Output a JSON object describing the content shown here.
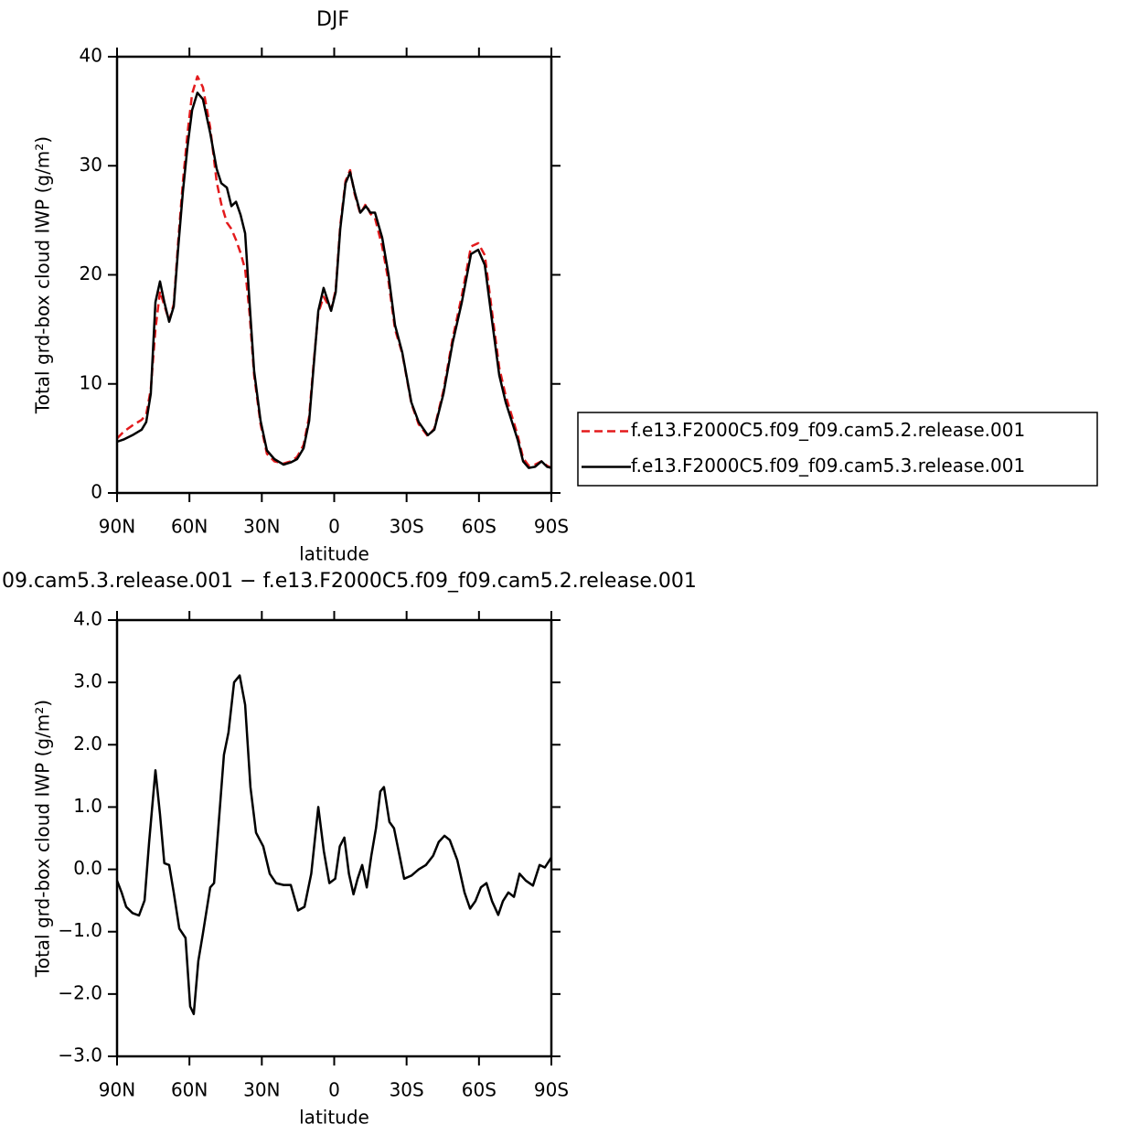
{
  "chart_data": [
    {
      "type": "line",
      "title": "DJF",
      "x_label": "latitude",
      "y_label": "Total grd-box cloud IWP (g/m²)",
      "x": [
        90,
        87.3,
        83.6,
        79.8,
        77.9,
        76,
        74.1,
        72.2,
        70.4,
        68.4,
        66.5,
        64.6,
        62.7,
        60.8,
        58.9,
        56.7,
        54.4,
        51.4,
        48.7,
        46.8,
        44.5,
        42.6,
        40.7,
        38.8,
        36.9,
        35.1,
        33.2,
        30.5,
        27.9,
        24.8,
        21,
        18,
        15.4,
        12.7,
        10.4,
        8.5,
        6.6,
        4.4,
        1.3,
        -0.6,
        -2.5,
        -4.7,
        -6.6,
        -8.5,
        -10.8,
        -13.1,
        -15,
        -16.9,
        -19.9,
        -22.5,
        -25.2,
        -28.2,
        -32,
        -35,
        -38.8,
        -41.5,
        -45.3,
        -49.1,
        -52.9,
        -56.7,
        -59.7,
        -62.4,
        -65.4,
        -68.4,
        -71.1,
        -73.7,
        -76,
        -78.3,
        -80.6,
        -83.2,
        -85.9,
        -88.2,
        -90
      ],
      "series": [
        {
          "name": "f.e13.F2000C5.f09_f09.cam5.2.release.001",
          "color": "#e31a1c",
          "dash": true,
          "values": [
            5.0,
            5.6,
            6.2,
            6.7,
            7.2,
            9.5,
            15,
            18.5,
            17.2,
            15.8,
            17.3,
            23.2,
            28.5,
            33,
            36.6,
            38.2,
            37.2,
            33.5,
            28.5,
            26.5,
            24.8,
            24.2,
            23.2,
            22,
            20.5,
            16.5,
            10.8,
            6.3,
            3.6,
            2.9,
            2.7,
            2.9,
            3.3,
            4.4,
            7,
            12,
            16.5,
            18,
            16.8,
            18.6,
            24.5,
            28.6,
            29.6,
            27.4,
            25.6,
            26.5,
            25.6,
            25.2,
            22.6,
            19.4,
            15,
            12.8,
            8.2,
            6.3,
            5.2,
            5.9,
            9.4,
            14.2,
            18.1,
            22.6,
            22.9,
            21.8,
            16.6,
            11.5,
            8.9,
            7.0,
            5.3,
            3.2,
            2.5,
            2.6,
            2.9,
            2.5,
            2.3
          ]
        },
        {
          "name": "f.e13.F2000C5.f09_f09.cam5.3.release.001",
          "color": "#000000",
          "dash": false,
          "values": [
            4.7,
            4.9,
            5.3,
            5.8,
            6.5,
            9.1,
            17.5,
            19.4,
            17.5,
            15.7,
            17.1,
            22.6,
            27.6,
            31.8,
            35.1,
            36.7,
            36.1,
            33,
            29.7,
            28.4,
            28,
            26.3,
            26.7,
            25.5,
            23.8,
            17.5,
            11.2,
            6.6,
            3.9,
            3.1,
            2.6,
            2.8,
            3.1,
            4.1,
            6.6,
            11.7,
            16.7,
            18.8,
            16.7,
            18.4,
            24.2,
            28.4,
            29.4,
            27.6,
            25.7,
            26.3,
            25.7,
            25.7,
            23.4,
            20,
            15.4,
            12.9,
            8.3,
            6.5,
            5.3,
            5.8,
            9.1,
            13.8,
            17.5,
            21.9,
            22.3,
            20.9,
            15.8,
            10.8,
            8.3,
            6.5,
            4.9,
            2.9,
            2.3,
            2.4,
            2.9,
            2.4,
            2.3
          ]
        }
      ],
      "xlim": [
        90,
        -90
      ],
      "xticks": [
        {
          "value": 90,
          "label": "90N"
        },
        {
          "value": 60,
          "label": "60N"
        },
        {
          "value": 30,
          "label": "30N"
        },
        0,
        {
          "value": -30,
          "label": "30S"
        },
        {
          "value": -60,
          "label": "60S"
        },
        {
          "value": -90,
          "label": "90S"
        }
      ],
      "ylim": [
        0,
        40
      ],
      "yticks": [
        0,
        10,
        20,
        30,
        40
      ],
      "legend": "right"
    },
    {
      "type": "line",
      "title": "09.cam5.3.release.001  −  f.e13.F2000C5.f09_f09.cam5.2.release.001",
      "x_label": "latitude",
      "y_label": "Total grd-box cloud IWP (g/m²)",
      "x": [
        90,
        88.1,
        86.2,
        83.6,
        80.9,
        78.6,
        76.7,
        74.1,
        72.2,
        70.4,
        68.4,
        66.5,
        64.2,
        61.6,
        59.7,
        58.2,
        56.3,
        54.4,
        51.4,
        49.8,
        47.6,
        45.7,
        43.8,
        41.5,
        39.2,
        36.9,
        34.7,
        32.4,
        29.4,
        26.7,
        24.1,
        21,
        18,
        15,
        12.3,
        9.5,
        6.6,
        4.3,
        2,
        -0.4,
        -2.3,
        -4.2,
        -6.1,
        -8,
        -9.7,
        -11.6,
        -13.5,
        -15.4,
        -17.3,
        -19.1,
        -20.6,
        -22.9,
        -24.8,
        -26.7,
        -29,
        -32,
        -35,
        -38,
        -41,
        -43.3,
        -45.7,
        -47.9,
        -51,
        -54,
        -56.3,
        -58.5,
        -60.8,
        -63.1,
        -65.4,
        -68,
        -69.9,
        -72.2,
        -74.5,
        -76.8,
        -79.4,
        -82.4,
        -85.1,
        -87.3,
        -90
      ],
      "series": [
        {
          "color": "#000000",
          "dash": false,
          "values": [
            -0.18,
            -0.37,
            -0.6,
            -0.7,
            -0.74,
            -0.5,
            0.44,
            1.59,
            0.88,
            0.1,
            0.07,
            -0.37,
            -0.95,
            -1.1,
            -2.2,
            -2.32,
            -1.47,
            -1.03,
            -0.29,
            -0.22,
            0.88,
            1.84,
            2.2,
            3.0,
            3.11,
            2.64,
            1.32,
            0.59,
            0.37,
            -0.07,
            -0.22,
            -0.25,
            -0.25,
            -0.66,
            -0.6,
            -0.07,
            1.0,
            0.29,
            -0.22,
            -0.15,
            0.37,
            0.51,
            -0.07,
            -0.4,
            -0.15,
            0.07,
            -0.29,
            0.22,
            0.66,
            1.25,
            1.32,
            0.76,
            0.66,
            0.29,
            -0.15,
            -0.1,
            0,
            0.07,
            0.22,
            0.44,
            0.54,
            0.47,
            0.15,
            -0.37,
            -0.63,
            -0.51,
            -0.29,
            -0.22,
            -0.51,
            -0.73,
            -0.51,
            -0.37,
            -0.44,
            -0.07,
            -0.18,
            -0.26,
            0.07,
            0.03,
            0.19
          ]
        }
      ],
      "xlim": [
        90,
        -90
      ],
      "xticks": [
        {
          "value": 90,
          "label": "90N"
        },
        {
          "value": 60,
          "label": "60N"
        },
        {
          "value": 30,
          "label": "30N"
        },
        0,
        {
          "value": -30,
          "label": "30S"
        },
        {
          "value": -60,
          "label": "60S"
        },
        {
          "value": -90,
          "label": "90S"
        }
      ],
      "ylim": [
        -3,
        4
      ],
      "yticks": [
        {
          "value": -3,
          "label": "−3.0"
        },
        {
          "value": -2,
          "label": "−2.0"
        },
        {
          "value": -1,
          "label": "−1.0"
        },
        {
          "value": 0,
          "label": "0.0"
        },
        {
          "value": 1,
          "label": "1.0"
        },
        {
          "value": 2,
          "label": "2.0"
        },
        {
          "value": 3,
          "label": "3.0"
        },
        {
          "value": 4,
          "label": "4.0"
        }
      ]
    }
  ]
}
